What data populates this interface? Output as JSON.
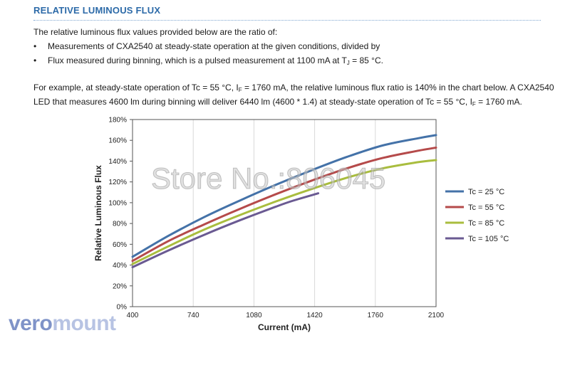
{
  "section": {
    "title": "RELATIVE LUMINOUS FLUX"
  },
  "intro": "The relative luminous flux values provided below are the ratio of:",
  "bullets": [
    {
      "dot": "•",
      "text": "Measurements of CXA2540 at steady-state operation at the given conditions, divided by"
    },
    {
      "dot": "•",
      "text_pre": "Flux measured during binning, which is a pulsed measurement at 1100 mA at T",
      "sub": "J",
      "text_post": " = 85 °C."
    }
  ],
  "example": {
    "line1_pre": "For example, at steady-state operation of Tc = 55 °C, I",
    "line1_sub": "F",
    "line1_post": " = 1760 mA, the relative luminous flux ratio is 140% in the chart below. A CXA2540",
    "line2_pre": "LED that measures 4600 lm during binning will deliver 6440 lm (4600 * 1.4) at steady-state operation of Tc = 55 °C, I",
    "line2_sub": "F",
    "line2_post": " = 1760 mA."
  },
  "watermark": "Store No.:806045",
  "logo": {
    "part1": "vero",
    "part2": "mount"
  },
  "chart_data": {
    "type": "line",
    "xlabel": "Current (mA)",
    "ylabel": "Relative Luminous Flux",
    "xlim": [
      400,
      2100
    ],
    "ylim": [
      0,
      180
    ],
    "x_ticks": [
      400,
      740,
      1080,
      1420,
      1760,
      2100
    ],
    "y_ticks": [
      0,
      20,
      40,
      60,
      80,
      100,
      120,
      140,
      160,
      180
    ],
    "y_tick_labels": [
      "0%",
      "20%",
      "40%",
      "60%",
      "80%",
      "100%",
      "120%",
      "140%",
      "160%",
      "180%"
    ],
    "grid": "vertical",
    "legend_position": "right",
    "series": [
      {
        "name": "Tc = 25 °C",
        "color": "#4472a8",
        "x": [
          400,
          600,
          800,
          1000,
          1200,
          1400,
          1600,
          1800,
          2000,
          2100
        ],
        "y": [
          48,
          68,
          86,
          102,
          117,
          131,
          144,
          155,
          162,
          165
        ]
      },
      {
        "name": "Tc = 55 °C",
        "color": "#b54a4a",
        "x": [
          400,
          600,
          800,
          1000,
          1200,
          1400,
          1600,
          1800,
          2000,
          2100
        ],
        "y": [
          44,
          63,
          79,
          94,
          108,
          121,
          133,
          143,
          150,
          153
        ]
      },
      {
        "name": "Tc = 85 °C",
        "color": "#a9bd3e",
        "x": [
          400,
          600,
          800,
          1000,
          1200,
          1400,
          1600,
          1800,
          2000,
          2100
        ],
        "y": [
          41,
          58,
          74,
          88,
          101,
          113,
          124,
          133,
          139,
          141
        ]
      },
      {
        "name": "Tc = 105 °C",
        "color": "#6a5a92",
        "x": [
          400,
          600,
          800,
          1000,
          1200,
          1300,
          1440
        ],
        "y": [
          38,
          54,
          69,
          83,
          96,
          102,
          109
        ]
      }
    ]
  }
}
